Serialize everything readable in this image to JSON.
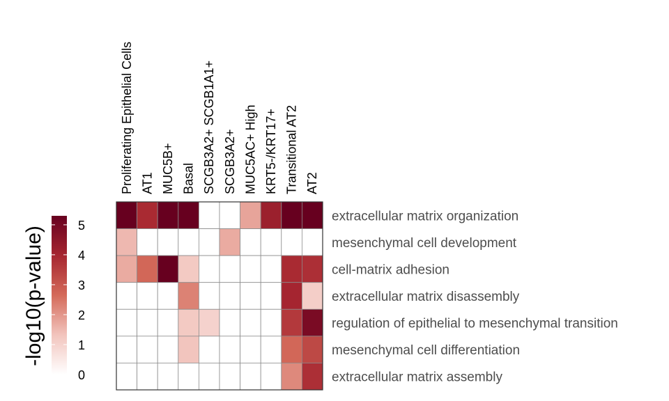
{
  "chart_data": {
    "type": "heatmap",
    "columns": [
      "Proliferating Epithelial Cells",
      "AT1",
      "MUC5B+",
      "Basal",
      "SCGB3A2+ SCGB1A1+",
      "SCGB3A2+",
      "MUC5AC+ High",
      "KRT5-/KRT17+",
      "Transitional AT2",
      "AT2"
    ],
    "rows": [
      "extracellular matrix organization",
      "mesenchymal cell development",
      "cell-matrix adhesion",
      "extracellular matrix disassembly",
      "regulation of epithelial to mesenchymal transition",
      "mesenchymal cell differentiation",
      "extracellular matrix assembly"
    ],
    "values": [
      [
        5.3,
        3.9,
        5.3,
        5.3,
        0,
        0,
        1.8,
        4.2,
        5.3,
        5.3
      ],
      [
        1.5,
        0,
        0,
        0,
        0,
        1.7,
        0,
        0,
        0,
        0
      ],
      [
        1.7,
        2.7,
        5.3,
        1.2,
        0,
        0,
        0,
        0,
        3.9,
        3.8
      ],
      [
        0,
        0,
        0,
        2.3,
        0,
        0,
        0,
        0,
        4.0,
        1.1
      ],
      [
        0,
        0,
        0,
        1.2,
        1.0,
        0,
        0,
        0,
        3.6,
        4.9
      ],
      [
        0,
        0,
        0,
        1.3,
        0,
        0,
        0,
        0,
        2.7,
        3.3
      ],
      [
        0,
        0,
        0,
        0,
        0,
        0,
        0,
        0,
        2.2,
        3.8
      ]
    ],
    "legend": {
      "title": "-log10(p-value)",
      "ticks": [
        0,
        1,
        2,
        3,
        4,
        5
      ],
      "range": [
        0,
        5.3
      ],
      "colors": [
        "#ffffff",
        "#f2c4bd",
        "#d46a5a",
        "#a62630",
        "#67001f"
      ]
    }
  }
}
